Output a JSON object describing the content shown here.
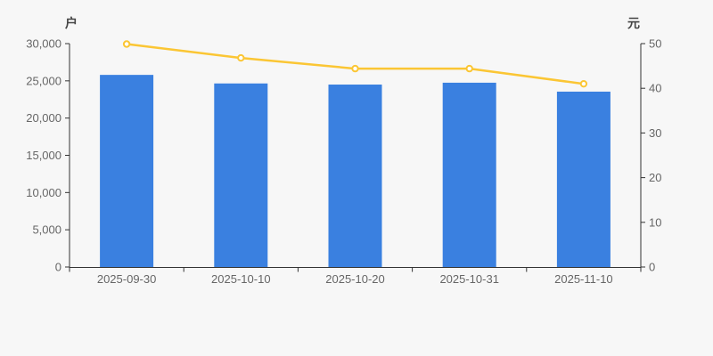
{
  "chart_data": {
    "type": "bar",
    "title": "",
    "categories": [
      "2025-09-30",
      "2025-10-10",
      "2025-10-20",
      "2025-10-31",
      "2025-11-10"
    ],
    "series": [
      {
        "id": "bars",
        "kind": "bar",
        "axis": "left",
        "values": [
          25800,
          24650,
          24500,
          24750,
          23550
        ]
      },
      {
        "id": "line",
        "kind": "line",
        "axis": "right",
        "values": [
          49.9,
          46.8,
          44.4,
          44.4,
          41.0
        ]
      }
    ],
    "left_axis": {
      "name": "户",
      "min": 0,
      "max": 30000,
      "tick_labels": [
        "0",
        "5,000",
        "10,000",
        "15,000",
        "20,000",
        "25,000",
        "30,000"
      ]
    },
    "right_axis": {
      "name": "元",
      "min": 0,
      "max": 50,
      "tick_labels": [
        "0",
        "10",
        "20",
        "30",
        "40",
        "50"
      ]
    },
    "grid": false,
    "legend": "none"
  },
  "colors": {
    "background": "#f7f7f7",
    "bar": "#3a80e0",
    "line": "#fbc634",
    "marker_fill": "#ffffff",
    "axis": "#333333",
    "tick_label": "#666666"
  }
}
